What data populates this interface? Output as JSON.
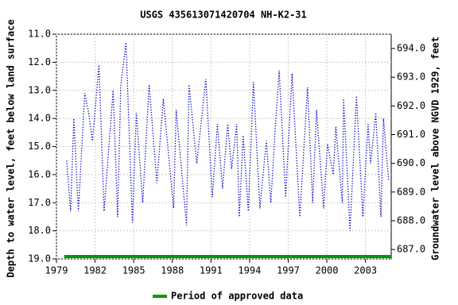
{
  "chart_data": {
    "type": "line",
    "title": "USGS 435613071420704 NH-K2-31",
    "ylabel": "Depth to water level, feet below land surface",
    "y2label": "Groundwater level above NGVD 1929, feet",
    "xlim": [
      1979,
      2005
    ],
    "xticks": [
      1979,
      1982,
      1985,
      1988,
      1991,
      1994,
      1997,
      2000,
      2003
    ],
    "ylim": [
      19,
      11
    ],
    "yticks": [
      {
        "value": 11,
        "label": "11.0"
      },
      {
        "value": 12,
        "label": "12.0"
      },
      {
        "value": 13,
        "label": "13.0"
      },
      {
        "value": 14,
        "label": "14.0"
      },
      {
        "value": 15,
        "label": "15.0"
      },
      {
        "value": 16,
        "label": "16.0"
      },
      {
        "value": 17,
        "label": "17.0"
      },
      {
        "value": 18,
        "label": "18.0"
      },
      {
        "value": 19,
        "label": "19.0"
      }
    ],
    "y2lim": [
      686.67,
      694.5
    ],
    "y2ticks": [
      {
        "value": 687,
        "label": "687.0"
      },
      {
        "value": 688,
        "label": "688.0"
      },
      {
        "value": 689,
        "label": "689.0"
      },
      {
        "value": 690,
        "label": "690.0"
      },
      {
        "value": 691,
        "label": "691.0"
      },
      {
        "value": 692,
        "label": "692.0"
      },
      {
        "value": 693,
        "label": "693.0"
      },
      {
        "value": 694,
        "label": "694.0"
      }
    ],
    "grid": true,
    "x": [
      1979.8,
      1980.1,
      1980.35,
      1980.7,
      1981.2,
      1981.5,
      1981.8,
      1982.3,
      1982.7,
      1983.4,
      1983.75,
      1984.0,
      1984.4,
      1984.9,
      1985.2,
      1985.7,
      1986.2,
      1986.8,
      1987.3,
      1988.1,
      1988.3,
      1989.1,
      1989.3,
      1989.9,
      1990.6,
      1991.1,
      1991.5,
      1991.9,
      1992.3,
      1992.6,
      1993.0,
      1993.2,
      1993.5,
      1993.9,
      1994.3,
      1994.8,
      1995.3,
      1995.65,
      1996.0,
      1996.3,
      1996.8,
      1997.3,
      1997.9,
      1998.5,
      1998.9,
      1999.2,
      1999.75,
      2000.05,
      2000.5,
      2000.7,
      2001.2,
      2001.3,
      2001.8,
      2002.3,
      2002.8,
      2003.2,
      2003.4,
      2003.8,
      2004.2,
      2004.4,
      2004.8
    ],
    "series": [
      {
        "name": "Depth to water level",
        "color": "#0000cc",
        "values": [
          15.5,
          17.3,
          14.0,
          17.3,
          13.1,
          13.8,
          14.8,
          12.1,
          17.3,
          13.0,
          17.5,
          12.8,
          11.3,
          17.7,
          13.8,
          17.0,
          12.8,
          16.3,
          13.3,
          17.2,
          13.7,
          17.8,
          12.8,
          15.6,
          12.6,
          16.8,
          14.2,
          16.5,
          14.2,
          15.8,
          14.2,
          17.5,
          14.6,
          17.3,
          12.7,
          17.2,
          14.8,
          17.0,
          14.3,
          12.3,
          16.8,
          12.4,
          17.5,
          12.9,
          17.0,
          13.7,
          17.2,
          14.9,
          16.0,
          14.3,
          17.0,
          13.3,
          18.0,
          13.2,
          17.5,
          14.2,
          15.6,
          13.8,
          17.5,
          14.0,
          16.2
        ]
      }
    ],
    "approved": {
      "name": "Period of approved data",
      "color": "#009900",
      "x": [
        1979.6,
        2005
      ]
    }
  }
}
